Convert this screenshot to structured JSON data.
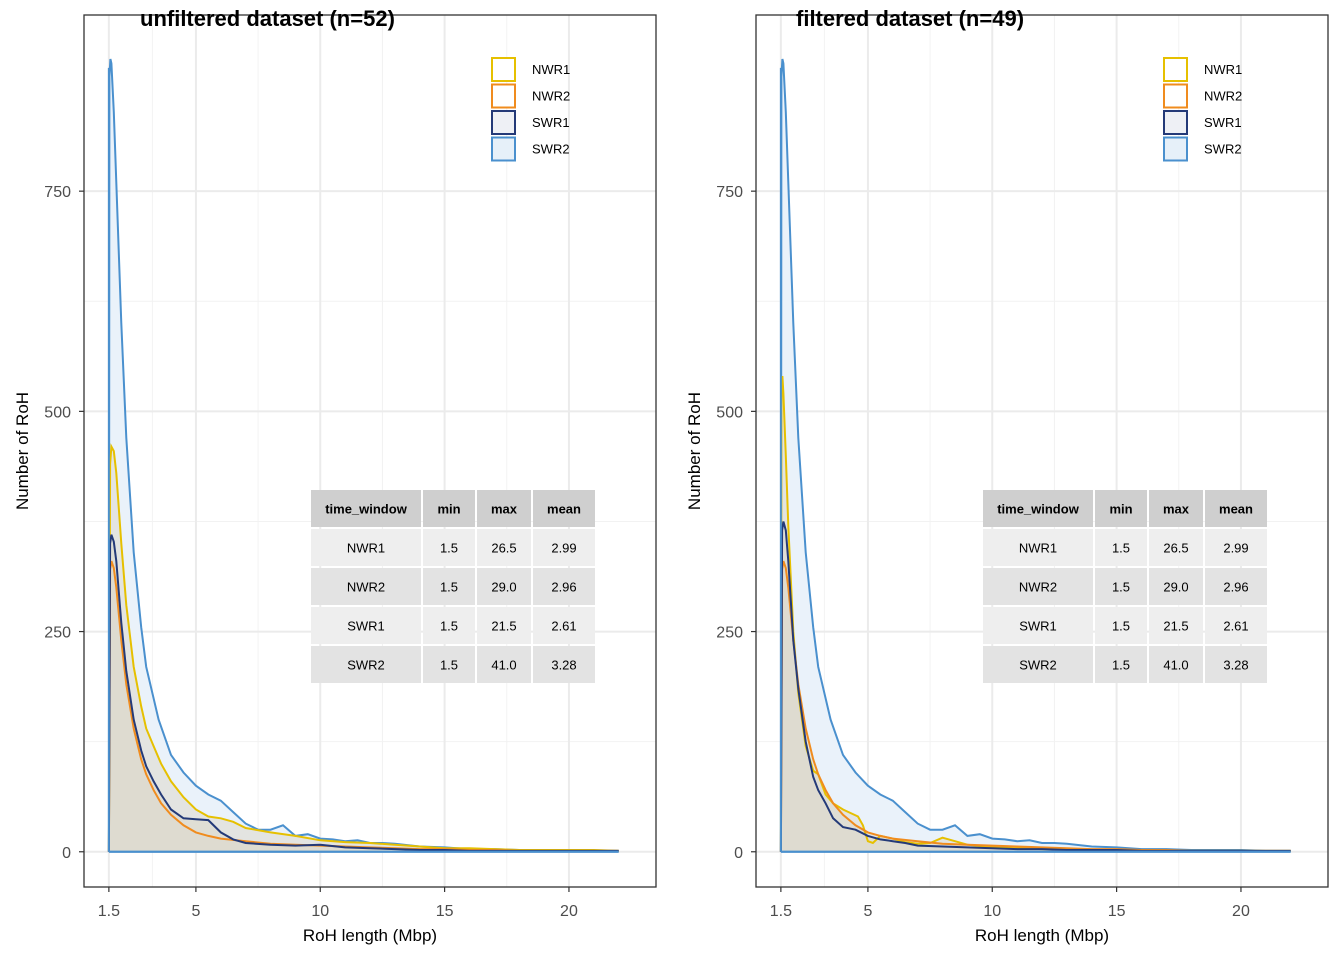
{
  "chart_data": [
    {
      "type": "density",
      "title": "unfiltered dataset (n=52)",
      "xlabel": "RoH length (Mbp)",
      "ylabel": "Number of RoH",
      "xlim": [
        0.5,
        23.5
      ],
      "ylim": [
        -40,
        950
      ],
      "x_ticks": [
        1.5,
        5,
        10,
        15,
        20
      ],
      "x_tick_labels": [
        "1.5",
        "5",
        "10",
        "15",
        "20"
      ],
      "y_ticks": [
        0,
        250,
        500,
        750
      ],
      "y_tick_labels": [
        "0",
        "250",
        "500",
        "750"
      ],
      "grid": true,
      "legend_position": "top-right",
      "series": [
        {
          "name": "NWR1",
          "x": [
            1.5,
            1.55,
            1.6,
            1.7,
            1.8,
            1.9,
            2.0,
            2.2,
            2.5,
            2.8,
            3.0,
            3.3,
            3.6,
            4.0,
            4.5,
            5.0,
            5.5,
            6.0,
            6.5,
            7.0,
            8.0,
            9.0,
            10.0,
            11.0,
            12.0,
            13.0,
            14.0,
            15.0,
            16.0,
            17.0,
            18.0,
            19.0,
            20.0,
            21.0,
            22.0
          ],
          "y": [
            0,
            440,
            460,
            455,
            430,
            390,
            350,
            280,
            210,
            165,
            140,
            120,
            100,
            80,
            62,
            48,
            40,
            38,
            34,
            27,
            22,
            18,
            13,
            11,
            10,
            8,
            6,
            4,
            4,
            3,
            2,
            2,
            2,
            2,
            1
          ]
        },
        {
          "name": "NWR2",
          "x": [
            1.5,
            1.55,
            1.6,
            1.7,
            1.8,
            1.9,
            2.0,
            2.2,
            2.5,
            2.8,
            3.0,
            3.3,
            3.6,
            4.0,
            4.5,
            5.0,
            5.5,
            6.0,
            7.0,
            8.0,
            9.0,
            10.0,
            11.0,
            12.0,
            13.0,
            14.0,
            15.0,
            16.0,
            17.0,
            18.0,
            19.0,
            20.0,
            21.0,
            22.0
          ],
          "y": [
            0,
            320,
            330,
            322,
            300,
            270,
            240,
            190,
            140,
            105,
            88,
            70,
            55,
            42,
            30,
            22,
            18,
            15,
            12,
            9,
            8,
            7,
            6,
            5,
            4,
            3,
            3,
            2,
            2,
            1,
            1,
            1,
            1,
            1
          ]
        },
        {
          "name": "SWR1",
          "x": [
            1.5,
            1.55,
            1.6,
            1.7,
            1.8,
            1.9,
            2.0,
            2.2,
            2.5,
            2.8,
            3.0,
            3.3,
            3.6,
            4.0,
            4.5,
            5.0,
            5.5,
            6.0,
            6.5,
            7.0,
            8.0,
            9.0,
            10.0,
            11.0,
            12.0,
            13.0,
            14.0,
            15.0,
            16.0,
            17.0,
            18.0,
            19.0,
            20.0,
            21.0,
            22.0
          ],
          "y": [
            0,
            350,
            360,
            352,
            330,
            295,
            260,
            205,
            150,
            115,
            97,
            80,
            65,
            48,
            38,
            37,
            36,
            22,
            14,
            10,
            8,
            7,
            8,
            5,
            4,
            3,
            2,
            2,
            1,
            1,
            1,
            1,
            1,
            1,
            1
          ]
        },
        {
          "name": "SWR2",
          "x": [
            1.5,
            1.52,
            1.56,
            1.6,
            1.7,
            1.8,
            2.0,
            2.2,
            2.5,
            2.8,
            3.0,
            3.5,
            4.0,
            4.5,
            5.0,
            5.5,
            6.0,
            6.5,
            7.0,
            7.5,
            8.0,
            8.5,
            9.0,
            9.5,
            10.0,
            10.5,
            11.0,
            11.5,
            12.0,
            12.5,
            13.0,
            14.0,
            15.0,
            16.0,
            17.0,
            18.0,
            19.0,
            20.0,
            21.0,
            22.0
          ],
          "y": [
            0,
            880,
            900,
            895,
            840,
            760,
            600,
            470,
            340,
            255,
            210,
            150,
            110,
            90,
            75,
            65,
            58,
            45,
            32,
            25,
            25,
            30,
            18,
            20,
            15,
            14,
            12,
            13,
            10,
            10,
            9,
            6,
            5,
            3,
            3,
            2,
            2,
            2,
            1,
            1
          ]
        }
      ],
      "table": {
        "headers": [
          "time_window",
          "min",
          "max",
          "mean"
        ],
        "rows": [
          [
            "NWR1",
            "1.5",
            "26.5",
            "2.99"
          ],
          [
            "NWR2",
            "1.5",
            "29.0",
            "2.96"
          ],
          [
            "SWR1",
            "1.5",
            "21.5",
            "2.61"
          ],
          [
            "SWR2",
            "1.5",
            "41.0",
            "3.28"
          ]
        ]
      }
    },
    {
      "type": "density",
      "title": "filtered dataset (n=49)",
      "xlabel": "RoH length (Mbp)",
      "ylabel": "Number of RoH",
      "xlim": [
        0.5,
        23.5
      ],
      "ylim": [
        -40,
        950
      ],
      "x_ticks": [
        1.5,
        5,
        10,
        15,
        20
      ],
      "x_tick_labels": [
        "1.5",
        "5",
        "10",
        "15",
        "20"
      ],
      "y_ticks": [
        0,
        250,
        500,
        750
      ],
      "y_tick_labels": [
        "0",
        "250",
        "500",
        "750"
      ],
      "grid": true,
      "legend_position": "top-right",
      "series": [
        {
          "name": "NWR1",
          "x": [
            1.5,
            1.52,
            1.56,
            1.6,
            1.7,
            1.8,
            2.0,
            2.2,
            2.5,
            2.8,
            3.0,
            3.3,
            3.6,
            4.0,
            4.3,
            4.6,
            4.8,
            5.0,
            5.2,
            5.5,
            6.0,
            6.5,
            7.0,
            7.5,
            8.0,
            8.5,
            9.0,
            10.0,
            11.0,
            12.0,
            13.0,
            14.0,
            15.0,
            16.0,
            17.0,
            18.0,
            19.0,
            20.0,
            21.0,
            22.0
          ],
          "y": [
            0,
            520,
            540,
            520,
            450,
            370,
            250,
            180,
            120,
            92,
            88,
            65,
            55,
            48,
            44,
            40,
            30,
            12,
            10,
            18,
            15,
            11,
            9,
            10,
            16,
            12,
            8,
            5,
            4,
            3,
            3,
            2,
            2,
            2,
            1,
            1,
            1,
            1,
            1,
            1
          ]
        },
        {
          "name": "NWR2",
          "x": [
            1.5,
            1.55,
            1.6,
            1.7,
            1.8,
            1.9,
            2.0,
            2.2,
            2.5,
            2.8,
            3.0,
            3.3,
            3.6,
            4.0,
            4.5,
            5.0,
            5.5,
            6.0,
            7.0,
            8.0,
            9.0,
            10.0,
            11.0,
            12.0,
            13.0,
            14.0,
            15.0,
            16.0,
            17.0,
            18.0,
            19.0,
            20.0,
            21.0,
            22.0
          ],
          "y": [
            0,
            320,
            330,
            322,
            300,
            270,
            240,
            190,
            140,
            105,
            88,
            70,
            55,
            42,
            30,
            22,
            18,
            15,
            12,
            9,
            8,
            7,
            6,
            5,
            4,
            3,
            3,
            2,
            2,
            1,
            1,
            1,
            1,
            1
          ]
        },
        {
          "name": "SWR1",
          "x": [
            1.5,
            1.55,
            1.6,
            1.7,
            1.8,
            1.9,
            2.0,
            2.2,
            2.5,
            2.8,
            3.0,
            3.3,
            3.6,
            4.0,
            4.5,
            5.0,
            5.5,
            6.0,
            6.5,
            7.0,
            8.0,
            9.0,
            10.0,
            11.0,
            12.0,
            13.0,
            14.0,
            15.0,
            16.0,
            17.0,
            18.0,
            19.0,
            20.0,
            21.0,
            22.0
          ],
          "y": [
            0,
            365,
            375,
            365,
            330,
            285,
            240,
            185,
            125,
            85,
            70,
            55,
            38,
            28,
            25,
            18,
            14,
            12,
            10,
            7,
            6,
            5,
            4,
            3,
            3,
            2,
            2,
            2,
            1,
            1,
            1,
            1,
            1,
            1,
            1
          ]
        },
        {
          "name": "SWR2",
          "x": [
            1.5,
            1.52,
            1.56,
            1.6,
            1.7,
            1.8,
            2.0,
            2.2,
            2.5,
            2.8,
            3.0,
            3.5,
            4.0,
            4.5,
            5.0,
            5.5,
            6.0,
            6.5,
            7.0,
            7.5,
            8.0,
            8.5,
            9.0,
            9.5,
            10.0,
            10.5,
            11.0,
            11.5,
            12.0,
            12.5,
            13.0,
            14.0,
            15.0,
            16.0,
            17.0,
            18.0,
            19.0,
            20.0,
            21.0,
            22.0
          ],
          "y": [
            0,
            880,
            900,
            895,
            840,
            760,
            600,
            470,
            340,
            255,
            210,
            150,
            110,
            90,
            75,
            65,
            58,
            45,
            32,
            25,
            25,
            30,
            18,
            20,
            15,
            14,
            12,
            13,
            10,
            10,
            9,
            6,
            5,
            3,
            3,
            2,
            2,
            2,
            1,
            1
          ]
        }
      ],
      "table": {
        "headers": [
          "time_window",
          "min",
          "max",
          "mean"
        ],
        "rows": [
          [
            "NWR1",
            "1.5",
            "26.5",
            "2.99"
          ],
          [
            "NWR2",
            "1.5",
            "29.0",
            "2.96"
          ],
          [
            "SWR1",
            "1.5",
            "21.5",
            "2.61"
          ],
          [
            "SWR2",
            "1.5",
            "41.0",
            "3.28"
          ]
        ]
      }
    }
  ],
  "legend": [
    {
      "name": "NWR1",
      "color": "#E6C000",
      "fill": "#ffffff"
    },
    {
      "name": "NWR2",
      "color": "#F08C1E",
      "fill": "#ffffff"
    },
    {
      "name": "SWR1",
      "color": "#243A78",
      "fill": "#EEF0F5"
    },
    {
      "name": "SWR2",
      "color": "#4A90CE",
      "fill": "#E6F0F9"
    }
  ],
  "colors": {
    "overlap_fill": "#DCD8CC",
    "swr2_fill": "#EAF2FA",
    "header_bg": "#CFCFCF",
    "row_bg_odd": "#EEEEEE",
    "row_bg_even": "#E3E3E3"
  }
}
